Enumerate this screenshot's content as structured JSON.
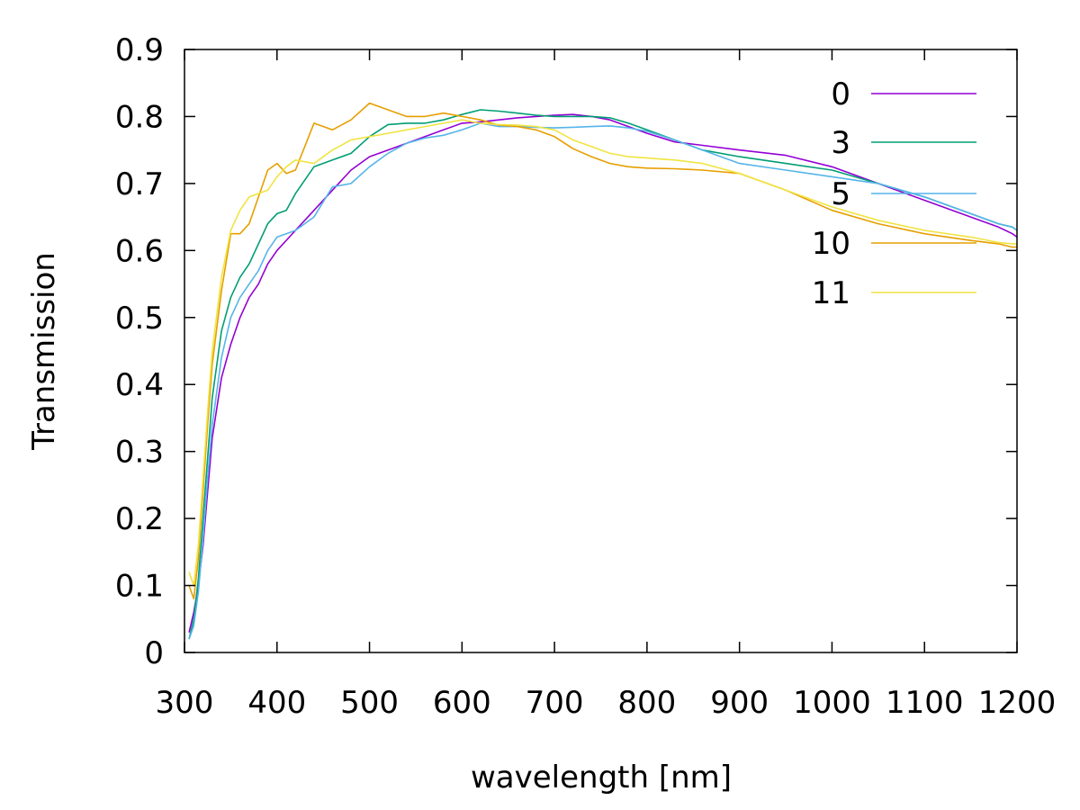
{
  "chart_data": {
    "type": "line",
    "title": "",
    "xlabel": "wavelength [nm]",
    "ylabel": "Transmission",
    "xlim": [
      300,
      1200
    ],
    "ylim": [
      0,
      0.9
    ],
    "x_ticks": [
      "300",
      "400",
      "500",
      "600",
      "700",
      "800",
      "900",
      "1000",
      "1100",
      "1200"
    ],
    "y_ticks": [
      "0",
      "0.1",
      "0.2",
      "0.3",
      "0.4",
      "0.5",
      "0.6",
      "0.7",
      "0.8",
      "0.9"
    ],
    "grid": false,
    "legend_position": "top-right",
    "series": [
      {
        "name": "0",
        "color": "#9400d3",
        "x": [
          305,
          310,
          315,
          320,
          325,
          330,
          340,
          350,
          360,
          370,
          380,
          390,
          400,
          420,
          440,
          460,
          480,
          500,
          520,
          540,
          560,
          580,
          600,
          620,
          640,
          660,
          680,
          700,
          720,
          740,
          760,
          780,
          800,
          830,
          860,
          900,
          950,
          1000,
          1050,
          1100,
          1150,
          1180,
          1195,
          1200
        ],
        "y": [
          0.03,
          0.06,
          0.1,
          0.16,
          0.24,
          0.32,
          0.41,
          0.46,
          0.5,
          0.53,
          0.55,
          0.58,
          0.6,
          0.63,
          0.66,
          0.69,
          0.72,
          0.74,
          0.75,
          0.76,
          0.77,
          0.78,
          0.79,
          0.792,
          0.795,
          0.798,
          0.8,
          0.802,
          0.803,
          0.8,
          0.795,
          0.785,
          0.775,
          0.762,
          0.757,
          0.75,
          0.742,
          0.725,
          0.7,
          0.675,
          0.65,
          0.635,
          0.625,
          0.62
        ]
      },
      {
        "name": "3",
        "color": "#009e73",
        "x": [
          305,
          310,
          315,
          320,
          325,
          330,
          340,
          350,
          360,
          370,
          380,
          390,
          400,
          410,
          420,
          440,
          460,
          480,
          500,
          520,
          540,
          560,
          580,
          600,
          620,
          640,
          660,
          680,
          700,
          720,
          740,
          760,
          780,
          800,
          830,
          860,
          900,
          950,
          1000,
          1050,
          1100,
          1150,
          1180,
          1195,
          1200
        ],
        "y": [
          0.02,
          0.05,
          0.11,
          0.2,
          0.29,
          0.38,
          0.48,
          0.53,
          0.56,
          0.58,
          0.61,
          0.64,
          0.655,
          0.66,
          0.685,
          0.725,
          0.735,
          0.745,
          0.77,
          0.788,
          0.79,
          0.79,
          0.795,
          0.803,
          0.81,
          0.808,
          0.805,
          0.802,
          0.8,
          0.8,
          0.8,
          0.798,
          0.79,
          0.78,
          0.765,
          0.75,
          0.74,
          0.73,
          0.72,
          0.7,
          0.68,
          0.655,
          0.64,
          0.635,
          0.63
        ]
      },
      {
        "name": "5",
        "color": "#56b4e9",
        "x": [
          305,
          310,
          315,
          320,
          325,
          330,
          340,
          350,
          360,
          370,
          380,
          390,
          400,
          410,
          420,
          440,
          460,
          480,
          500,
          520,
          540,
          560,
          580,
          600,
          620,
          640,
          660,
          680,
          700,
          720,
          740,
          760,
          780,
          800,
          830,
          860,
          900,
          950,
          1000,
          1050,
          1100,
          1150,
          1180,
          1195,
          1200
        ],
        "y": [
          0.02,
          0.04,
          0.09,
          0.17,
          0.26,
          0.34,
          0.44,
          0.5,
          0.53,
          0.55,
          0.57,
          0.6,
          0.62,
          0.625,
          0.63,
          0.65,
          0.695,
          0.7,
          0.725,
          0.745,
          0.76,
          0.768,
          0.772,
          0.78,
          0.79,
          0.785,
          0.785,
          0.784,
          0.783,
          0.784,
          0.785,
          0.786,
          0.783,
          0.778,
          0.765,
          0.75,
          0.73,
          0.72,
          0.71,
          0.7,
          0.68,
          0.655,
          0.64,
          0.635,
          0.63
        ]
      },
      {
        "name": "10",
        "color": "#e69f00",
        "x": [
          305,
          310,
          315,
          320,
          325,
          330,
          340,
          350,
          360,
          370,
          380,
          390,
          400,
          410,
          420,
          440,
          460,
          480,
          500,
          520,
          540,
          560,
          580,
          600,
          620,
          640,
          660,
          680,
          700,
          720,
          740,
          760,
          780,
          800,
          830,
          860,
          900,
          950,
          1000,
          1050,
          1100,
          1150,
          1180,
          1195,
          1200
        ],
        "y": [
          0.1,
          0.08,
          0.14,
          0.24,
          0.34,
          0.43,
          0.54,
          0.625,
          0.625,
          0.64,
          0.68,
          0.72,
          0.73,
          0.715,
          0.72,
          0.79,
          0.78,
          0.795,
          0.82,
          0.81,
          0.8,
          0.8,
          0.805,
          0.8,
          0.795,
          0.787,
          0.785,
          0.78,
          0.77,
          0.752,
          0.74,
          0.73,
          0.725,
          0.723,
          0.722,
          0.72,
          0.715,
          0.69,
          0.66,
          0.64,
          0.625,
          0.615,
          0.61,
          0.605,
          0.605
        ]
      },
      {
        "name": "11",
        "color": "#f0e442",
        "x": [
          305,
          310,
          315,
          320,
          325,
          330,
          340,
          350,
          360,
          370,
          380,
          390,
          400,
          410,
          420,
          440,
          460,
          480,
          500,
          520,
          540,
          560,
          580,
          600,
          620,
          640,
          660,
          680,
          700,
          720,
          740,
          760,
          780,
          800,
          830,
          860,
          900,
          950,
          1000,
          1050,
          1100,
          1150,
          1180,
          1195,
          1200
        ],
        "y": [
          0.12,
          0.1,
          0.16,
          0.26,
          0.36,
          0.45,
          0.56,
          0.63,
          0.66,
          0.68,
          0.685,
          0.69,
          0.71,
          0.725,
          0.735,
          0.73,
          0.75,
          0.765,
          0.77,
          0.775,
          0.78,
          0.785,
          0.79,
          0.795,
          0.79,
          0.788,
          0.787,
          0.785,
          0.78,
          0.765,
          0.755,
          0.745,
          0.74,
          0.738,
          0.735,
          0.73,
          0.715,
          0.69,
          0.665,
          0.645,
          0.63,
          0.62,
          0.612,
          0.61,
          0.61
        ]
      }
    ]
  }
}
